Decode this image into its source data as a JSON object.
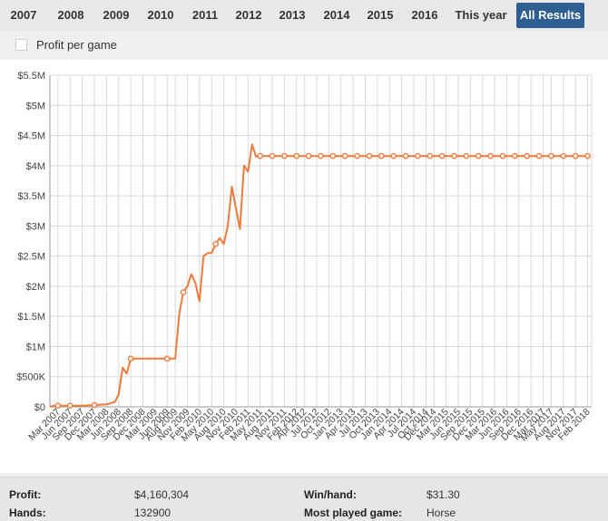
{
  "tabs": [
    {
      "label": "2007",
      "active": false
    },
    {
      "label": "2008",
      "active": false
    },
    {
      "label": "2009",
      "active": false
    },
    {
      "label": "2010",
      "active": false
    },
    {
      "label": "2011",
      "active": false
    },
    {
      "label": "2012",
      "active": false
    },
    {
      "label": "2013",
      "active": false
    },
    {
      "label": "2014",
      "active": false
    },
    {
      "label": "2015",
      "active": false
    },
    {
      "label": "2016",
      "active": false
    },
    {
      "label": "This year",
      "active": false
    },
    {
      "label": "All Results",
      "active": true
    }
  ],
  "options": {
    "profit_per_game_label": "Profit per game",
    "profit_per_game_checked": false
  },
  "colors": {
    "accent": "#2f5e93",
    "line": "#ee7a3c",
    "grid": "#d9d9d9"
  },
  "chart_data": {
    "type": "line",
    "title": "",
    "xlabel": "",
    "ylabel": "",
    "ylim": [
      0,
      5500000
    ],
    "yticks": [
      "$0",
      "$500K",
      "$1M",
      "$1.5M",
      "$2M",
      "$2.5M",
      "$3M",
      "$3.5M",
      "$4M",
      "$4.5M",
      "$5M",
      "$5.5M"
    ],
    "xticks": [
      "Mar 2007",
      "Jun 2007",
      "Sep 2007",
      "Dec 2007",
      "Mar 2008",
      "Jun 2008",
      "Sep 2008",
      "Dec 2008",
      "Mar 2009",
      "Jun 2009",
      "Aug 2009",
      "Nov 2009",
      "Feb 2010",
      "May 2010",
      "Aug 2010",
      "Nov 2010",
      "Feb 2011",
      "May 2011",
      "Aug 2011",
      "Nov 2011",
      "Feb 2012",
      "Apr 2012",
      "Jul 2012",
      "Oct 2012",
      "Jan 2013",
      "Apr 2013",
      "Jul 2013",
      "Oct 2013",
      "Jan 2014",
      "Apr 2014",
      "Jul 2014",
      "Oct 2014",
      "Dec 2014",
      "Mar 2015",
      "Jun 2015",
      "Sep 2015",
      "Dec 2015",
      "Mar 2016",
      "Jun 2016",
      "Sep 2016",
      "Dec 2016",
      "Mar 2017",
      "May 2017",
      "Aug 2017",
      "Nov 2017",
      "Feb 2018"
    ],
    "grid": true,
    "series": [
      {
        "name": "",
        "x": [
          "Jan 2007",
          "Feb 2007",
          "Mar 2007",
          "Jun 2007",
          "Sep 2007",
          "Dec 2007",
          "Mar 2008",
          "May 2008",
          "Jun 2008",
          "Jul 2008",
          "Aug 2008",
          "Sep 2008",
          "Oct 2008",
          "Nov 2008",
          "Dec 2008",
          "Mar 2009",
          "Jun 2009",
          "Aug 2009",
          "Sep 2009",
          "Oct 2009",
          "Nov 2009",
          "Dec 2009",
          "Jan 2010",
          "Feb 2010",
          "Mar 2010",
          "Apr 2010",
          "May 2010",
          "Jun 2010",
          "Jul 2010",
          "Aug 2010",
          "Sep 2010",
          "Oct 2010",
          "Nov 2010",
          "Dec 2010",
          "Jan 2011",
          "Feb 2011",
          "Mar 2011",
          "Apr 2011",
          "May 2011",
          "Jun 2011",
          "Aug 2011",
          "Nov 2011",
          "Feb 2012",
          "May 2012",
          "Aug 2012",
          "Nov 2012",
          "Feb 2013",
          "May 2013",
          "Aug 2013",
          "Nov 2013",
          "Feb 2014",
          "May 2014",
          "Aug 2014",
          "Nov 2014",
          "Feb 2015",
          "May 2015",
          "Aug 2015",
          "Nov 2015",
          "Feb 2016",
          "May 2016",
          "Aug 2016",
          "Nov 2016",
          "Feb 2017",
          "May 2017",
          "Aug 2017",
          "Nov 2017",
          "Feb 2018"
        ],
        "values": [
          0,
          20000,
          20000,
          20000,
          20000,
          30000,
          40000,
          80000,
          200000,
          650000,
          550000,
          800000,
          800000,
          800000,
          800000,
          800000,
          800000,
          800000,
          1550000,
          1900000,
          2000000,
          2200000,
          2050000,
          1750000,
          2500000,
          2550000,
          2550000,
          2700000,
          2800000,
          2700000,
          3000000,
          3650000,
          3300000,
          2950000,
          4000000,
          3900000,
          4350000,
          4150000,
          4160000,
          4160000,
          4160000,
          4160000,
          4160000,
          4160000,
          4160000,
          4160000,
          4160000,
          4160000,
          4160000,
          4160000,
          4160000,
          4160000,
          4160000,
          4160000,
          4160000,
          4160000,
          4160000,
          4160000,
          4160000,
          4160000,
          4160000,
          4160000,
          4160000,
          4160000,
          4160000,
          4160000,
          4160304
        ],
        "markers": [
          "Mar 2007",
          "Jun 2007",
          "Dec 2007",
          "Sep 2008",
          "Jun 2009",
          "Oct 2009",
          "Jun 2010",
          "May 2011",
          "Aug 2011",
          "Nov 2011",
          "Feb 2012",
          "May 2012",
          "Aug 2012",
          "Nov 2012",
          "Feb 2013",
          "May 2013",
          "Aug 2013",
          "Nov 2013",
          "Feb 2014",
          "May 2014",
          "Aug 2014",
          "Nov 2014",
          "Feb 2015",
          "May 2015",
          "Aug 2015",
          "Nov 2015",
          "Feb 2016",
          "May 2016",
          "Aug 2016",
          "Nov 2016",
          "Feb 2017",
          "May 2017",
          "Aug 2017",
          "Nov 2017",
          "Feb 2018"
        ]
      }
    ]
  },
  "stats": {
    "profit": {
      "label": "Profit:",
      "value": "$4,160,304"
    },
    "hands": {
      "label": "Hands:",
      "value": "132900"
    },
    "win_hand": {
      "label": "Win/hand:",
      "value": "$31.30"
    },
    "most_played": {
      "label": "Most played game:",
      "value": "Horse"
    }
  }
}
